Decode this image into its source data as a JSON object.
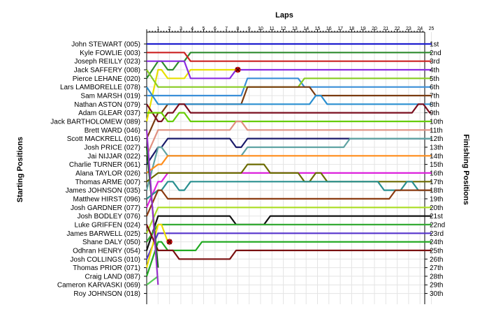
{
  "chart_data": {
    "type": "line",
    "title": "",
    "xlabel": "Laps",
    "ylabel_left": "Starting Positions",
    "ylabel_right": "Finishing Positions",
    "laps": [
      1,
      2,
      3,
      4,
      5,
      6,
      7,
      8,
      9,
      10,
      11,
      12,
      13,
      14,
      15,
      16,
      17,
      18,
      19,
      20,
      21,
      22,
      23,
      24,
      25
    ],
    "grid": true,
    "drivers": [
      "John STEWART (005)",
      "Kyle FOWLIE (003)",
      "Joseph REILLY (023)",
      "Jack SAFFERY (008)",
      "Pierce LEHANE (020)",
      "Lars LAMBORELLE (078)",
      "Sam MARSH (019)",
      "Nathan ASTON (079)",
      "Adam GLEAR (037)",
      "Jack BARTHOLOMEW (089)",
      "Brett WARD (046)",
      "Scott MACKRELL (016)",
      "Josh PRICE (027)",
      "Jai NIJJAR (022)",
      "Charlie TURNER (061)",
      "Alana TAYLOR (026)",
      "Thomas ARME (007)",
      "James JOHNSON (035)",
      "Matthew HIRST (096)",
      "Josh GARDNER (077)",
      "Josh BODLEY (076)",
      "Luke GRIFFEN (024)",
      "James BARWELL (025)",
      "Shane DALY (050)",
      "Odhran HENRY (054)",
      "Josh COLLINGS (010)",
      "Thomas PRIOR (071)",
      "Craig LAND (087)",
      "Cameron KARVASKI (069)",
      "Roy JOHNSON (018)"
    ],
    "finishing_positions": [
      "1st",
      "2nd",
      "3rd",
      "4th",
      "5th",
      "6th",
      "7th",
      "8th",
      "9th",
      "10th",
      "11th",
      "12th",
      "13th",
      "14th",
      "15th",
      "16th",
      "17th",
      "18th",
      "19th",
      "20th",
      "21st",
      "22nd",
      "23rd",
      "24th",
      "25th",
      "26th",
      "27th",
      "28th",
      "29th",
      "30th"
    ],
    "series": [
      {
        "color": "#1f1fcf",
        "positions": [
          1,
          1,
          1,
          1,
          1,
          1,
          1,
          1,
          1,
          1,
          1,
          1,
          1,
          1,
          1,
          1,
          1,
          1,
          1,
          1,
          1,
          1,
          1,
          1,
          1,
          1
        ]
      },
      {
        "color": "#2e8b2e",
        "positions": [
          5,
          3,
          4,
          3,
          2,
          2,
          2,
          2,
          2,
          2,
          2,
          2,
          2,
          2,
          2,
          2,
          2,
          2,
          2,
          2,
          2,
          2,
          2,
          2,
          2,
          2
        ]
      },
      {
        "color": "#cc2222",
        "positions": [
          2,
          2,
          2,
          2,
          3,
          3,
          3,
          3,
          3,
          3,
          3,
          3,
          3,
          3,
          3,
          3,
          3,
          3,
          3,
          3,
          3,
          3,
          3,
          3,
          3,
          3
        ]
      },
      {
        "color": "#e8e000",
        "positions": [
          10,
          4,
          5,
          5,
          4,
          4,
          4,
          4,
          4
        ]
      },
      {
        "color": "#8a2be2",
        "positions": [
          3,
          3,
          3,
          3,
          5,
          5,
          5,
          5,
          4,
          4,
          4,
          4,
          4,
          4,
          4,
          4,
          4,
          4,
          4,
          4,
          4,
          4,
          4,
          4,
          4,
          4
        ]
      },
      {
        "color": "#3a8fd8",
        "positions": [
          7,
          7,
          7,
          7,
          7,
          7,
          7,
          7,
          7,
          5,
          5,
          5,
          5,
          5,
          6,
          6,
          6,
          6,
          6,
          6,
          6,
          6,
          6,
          6,
          6,
          6
        ]
      },
      {
        "color": "#88cc22",
        "positions": [
          4,
          6,
          6,
          6,
          6,
          6,
          6,
          6,
          6,
          6,
          6,
          6,
          6,
          6,
          5,
          5,
          5,
          5,
          5,
          5,
          5,
          5,
          5,
          5,
          5,
          5
        ]
      },
      {
        "color": "#7a3b10",
        "positions": [
          12,
          9,
          8,
          8,
          8,
          8,
          8,
          8,
          8,
          6,
          6,
          6,
          6,
          6,
          6,
          7,
          7,
          7,
          7,
          7,
          7,
          7,
          7,
          7,
          7,
          7
        ]
      },
      {
        "color": "#2a8fd0",
        "positions": [
          6,
          8,
          8,
          8,
          8,
          8,
          8,
          8,
          8,
          8,
          8,
          8,
          8,
          8,
          8,
          7,
          8,
          8,
          8,
          8,
          8,
          8,
          8,
          8,
          8,
          8
        ]
      },
      {
        "color": "#7a0e1e",
        "positions": [
          8,
          10,
          9,
          8,
          9,
          9,
          9,
          9,
          9,
          9,
          9,
          9,
          9,
          9,
          9,
          9,
          9,
          9,
          9,
          9,
          9,
          9,
          9,
          9,
          8,
          9
        ]
      },
      {
        "color": "#66cc00",
        "positions": [
          9,
          9,
          10,
          9,
          10,
          10,
          10,
          10,
          10,
          10,
          10,
          10,
          10,
          10,
          10,
          10,
          10,
          10,
          10,
          10,
          10,
          10,
          10,
          10,
          10,
          10
        ]
      },
      {
        "color": "#e09080",
        "positions": [
          14,
          11,
          11,
          11,
          11,
          11,
          11,
          11,
          10,
          11,
          11,
          11,
          11,
          11,
          11,
          11,
          11,
          11,
          11,
          11,
          11,
          11,
          11,
          11,
          11,
          11
        ]
      },
      {
        "color": "#1a1a6a",
        "positions": [
          15,
          13,
          12,
          12,
          12,
          12,
          12,
          12,
          13,
          12,
          12,
          12,
          12,
          12,
          12,
          12,
          12,
          12,
          12,
          12,
          12,
          12,
          12,
          12,
          12,
          12
        ]
      },
      {
        "color": "#5fa3a3",
        "positions": [
          18,
          13,
          14,
          14,
          14,
          14,
          14,
          14,
          14,
          13,
          13,
          13,
          13,
          13,
          13,
          13,
          13,
          13,
          12,
          12,
          12,
          12,
          12,
          12,
          12,
          12
        ]
      },
      {
        "color": "#ff8c1a",
        "positions": [
          16,
          15,
          14,
          14,
          14,
          14,
          14,
          14,
          14,
          14,
          14,
          14,
          14,
          14,
          14,
          14,
          14,
          14,
          14,
          14,
          14,
          14,
          14,
          14,
          14,
          14
        ]
      },
      {
        "color": "#dd22dd",
        "positions": [
          20,
          17,
          16,
          16,
          16,
          16,
          16,
          16,
          16,
          16,
          16,
          16,
          16,
          16,
          16,
          16,
          16,
          16,
          16,
          16,
          16,
          16,
          16,
          16,
          16,
          16
        ]
      },
      {
        "color": "#6b6b00",
        "positions": [
          17,
          16,
          16,
          16,
          16,
          16,
          16,
          16,
          16,
          15,
          15,
          16,
          16,
          16,
          17,
          16,
          17,
          17,
          17,
          17,
          17,
          17,
          17,
          17,
          17,
          17
        ]
      },
      {
        "color": "#2a9090",
        "positions": [
          19,
          18,
          17,
          18,
          17,
          17,
          17,
          17,
          17,
          17,
          17,
          17,
          17,
          17,
          17,
          17,
          17,
          17,
          17,
          17,
          17,
          18,
          18,
          17,
          18,
          18
        ]
      },
      {
        "color": "#8a3a10",
        "positions": [
          21,
          18,
          19,
          19,
          19,
          19,
          19,
          19,
          19,
          19,
          19,
          19,
          19,
          19,
          19,
          19,
          19,
          19,
          19,
          19,
          19,
          19,
          18,
          18,
          18,
          18
        ]
      },
      {
        "color": "#aadd22",
        "positions": [
          23,
          20,
          20,
          20,
          20,
          20,
          20,
          20,
          20,
          20,
          20,
          20,
          20,
          20,
          20,
          20,
          20,
          20,
          20,
          20,
          20,
          20,
          20,
          20,
          20,
          20
        ]
      },
      {
        "color": "#111111",
        "positions": [
          25,
          21,
          21,
          21,
          21,
          21,
          21,
          21,
          22,
          22,
          22,
          21,
          21,
          21,
          21,
          21,
          21,
          21,
          21,
          21,
          21,
          21,
          21,
          21,
          21,
          21
        ]
      },
      {
        "color": "#33aa33",
        "positions": [
          24,
          22,
          22,
          22,
          22,
          22,
          22,
          22,
          22,
          22,
          22,
          22,
          22,
          22,
          22,
          22,
          22,
          22,
          22,
          22,
          22,
          22,
          22,
          22,
          22,
          22
        ]
      },
      {
        "color": "#5533cc",
        "positions": [
          26,
          23,
          23,
          23,
          23,
          23,
          23,
          23,
          23,
          23,
          23,
          23,
          23,
          23,
          23,
          23,
          23,
          23,
          23,
          23,
          23,
          23,
          23,
          23,
          23,
          23
        ]
      },
      {
        "color": "#eedd00",
        "positions": [
          27,
          22,
          24
        ]
      },
      {
        "color": "#22aa22",
        "positions": [
          28,
          24,
          25,
          25,
          25,
          24,
          24,
          24,
          24,
          24,
          24,
          24,
          24,
          24,
          24,
          24,
          24,
          24,
          24,
          24,
          24,
          24,
          24,
          24,
          24,
          24
        ]
      },
      {
        "color": "#7a1010",
        "positions": [
          22,
          25,
          25,
          26,
          26,
          26,
          26,
          26,
          25,
          25,
          25,
          25,
          25,
          25,
          25,
          25,
          25,
          25,
          25,
          25,
          25,
          25,
          25,
          25,
          25,
          25
        ]
      },
      {
        "color": "#0a6a0a",
        "positions": [
          13,
          27
        ]
      },
      {
        "color": "#55cc55",
        "positions": [
          29,
          28
        ]
      },
      {
        "color": "#9933cc",
        "positions": [
          11,
          29
        ]
      },
      {
        "color": "#aaaaaa",
        "positions": [
          30
        ]
      }
    ],
    "retirements": [
      {
        "series": 3,
        "lap": 8,
        "position": 4
      },
      {
        "series": 23,
        "lap": 2,
        "position": 24
      }
    ]
  }
}
